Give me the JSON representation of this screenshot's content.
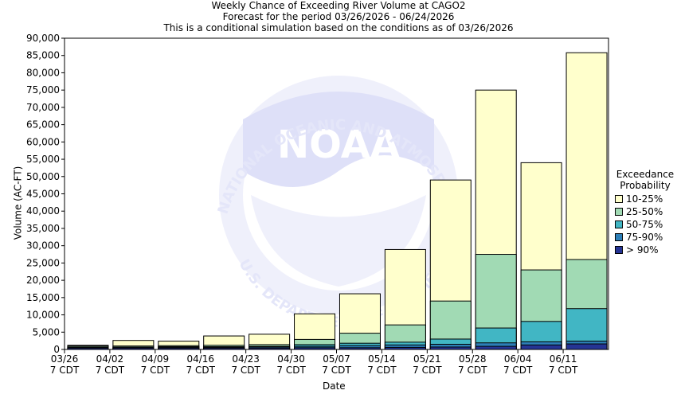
{
  "title_lines": [
    "Weekly Chance of Exceeding River Volume at CAGO2",
    "Forecast for the period 03/26/2026 - 06/24/2026",
    "This is a conditional simulation based on the conditions as of 03/26/2026"
  ],
  "watermark": {
    "logo_text": "NOAA",
    "ring_text": "NATIONAL OCEANIC AND ATMOSPHERIC ADMINISTRATION",
    "bottom_text": "U.S. DEPARTMENT OF COMMERCE"
  },
  "legend": {
    "title_line1": "Exceedance",
    "title_line2": "Probability"
  },
  "chart_data": {
    "type": "bar",
    "stacked_overlay": true,
    "xlabel": "Date",
    "ylabel": "Volume (AC-FT)",
    "ylim": [
      0,
      90000
    ],
    "yticks": [
      0,
      5000,
      10000,
      15000,
      20000,
      25000,
      30000,
      35000,
      40000,
      45000,
      50000,
      55000,
      60000,
      65000,
      70000,
      75000,
      80000,
      85000,
      90000
    ],
    "ytick_labels": [
      "0",
      "5,000",
      "10,000",
      "15,000",
      "20,000",
      "25,000",
      "30,000",
      "35,000",
      "40,000",
      "45,000",
      "50,000",
      "55,000",
      "60,000",
      "65,000",
      "70,000",
      "75,000",
      "80,000",
      "85,000",
      "90,000"
    ],
    "categories": [
      "03/26",
      "04/02",
      "04/09",
      "04/16",
      "04/23",
      "04/30",
      "05/07",
      "05/14",
      "05/21",
      "05/28",
      "06/04",
      "06/11"
    ],
    "category_sublabel": "7 CDT",
    "series": [
      {
        "name": "10-25%",
        "color": "#ffffcc",
        "values": [
          1200,
          2600,
          2400,
          3900,
          4400,
          10300,
          16100,
          28900,
          49000,
          75000,
          54000,
          85800
        ]
      },
      {
        "name": "25-50%",
        "color": "#a1dab4",
        "values": [
          1000,
          1000,
          1100,
          1200,
          1400,
          2900,
          4700,
          7100,
          14000,
          27500,
          23000,
          26000
        ]
      },
      {
        "name": "50-75%",
        "color": "#41b6c4",
        "values": [
          700,
          700,
          800,
          800,
          900,
          1400,
          1800,
          2100,
          3000,
          6200,
          8100,
          11800
        ]
      },
      {
        "name": "75-90%",
        "color": "#2c7fb8",
        "values": [
          500,
          600,
          600,
          600,
          700,
          900,
          1100,
          1300,
          1500,
          1900,
          2200,
          2400
        ]
      },
      {
        "name": "> 90%",
        "color": "#253494",
        "values": [
          400,
          400,
          400,
          400,
          400,
          500,
          500,
          600,
          700,
          900,
          1300,
          1600
        ]
      }
    ],
    "grid": false,
    "legend_position": "right"
  }
}
